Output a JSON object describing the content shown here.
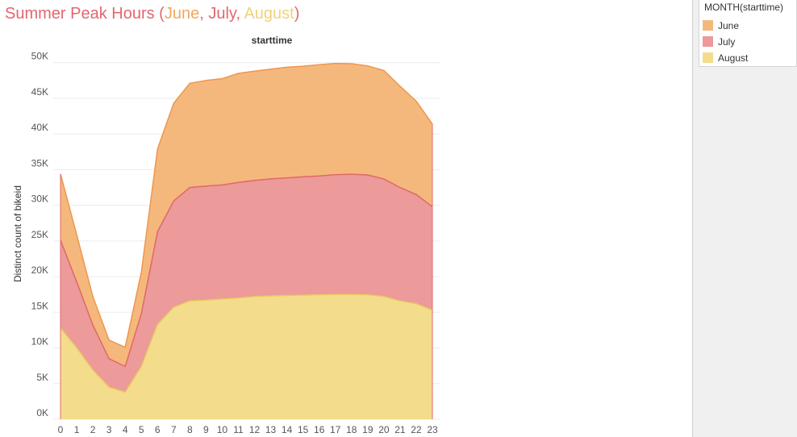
{
  "title": {
    "prefix": "Summer Peak Hours (",
    "june": "June",
    "sep1": ", ",
    "july": "July",
    "sep2": ", ",
    "august": "August",
    "suffix": ")"
  },
  "colors": {
    "title_main": "#e3666e",
    "title_june": "#f2a75c",
    "title_july": "#e3666e",
    "title_august": "#f0d27a",
    "june_fill": "#f5b87c",
    "june_stroke": "#ee9650",
    "july_fill": "#ec9a9a",
    "july_stroke": "#e0686a",
    "august_fill": "#f3dd8c",
    "august_stroke": "#e9c964",
    "gridline": "#ececec"
  },
  "legend": {
    "title": "MONTH(starttime)",
    "items": [
      {
        "label": "June",
        "color": "#f5b87c"
      },
      {
        "label": "July",
        "color": "#ec9a9a"
      },
      {
        "label": "August",
        "color": "#f3dd8c"
      }
    ]
  },
  "chart_data": {
    "type": "area",
    "stacked": true,
    "header": "starttime",
    "xlabel": "",
    "ylabel": "Distinct count of bikeid",
    "x": [
      0,
      1,
      2,
      3,
      4,
      5,
      6,
      7,
      8,
      9,
      10,
      11,
      12,
      13,
      14,
      15,
      16,
      17,
      18,
      19,
      20,
      21,
      22,
      23
    ],
    "ylim": [
      0,
      52000
    ],
    "yticks": [
      0,
      5000,
      10000,
      15000,
      20000,
      25000,
      30000,
      35000,
      40000,
      45000,
      50000
    ],
    "ytick_labels": [
      "0K",
      "5K",
      "10K",
      "15K",
      "20K",
      "25K",
      "30K",
      "35K",
      "40K",
      "45K",
      "50K"
    ],
    "grid": true,
    "legend_position": "top-right",
    "series": [
      {
        "name": "August",
        "values": [
          12800,
          10000,
          6900,
          4500,
          3800,
          7400,
          13300,
          15700,
          16600,
          16700,
          16850,
          17000,
          17200,
          17300,
          17350,
          17400,
          17450,
          17500,
          17500,
          17450,
          17200,
          16600,
          16200,
          15300
        ]
      },
      {
        "name": "July",
        "values": [
          12300,
          9300,
          6300,
          4000,
          3600,
          7400,
          13000,
          14900,
          15900,
          16000,
          16000,
          16200,
          16300,
          16400,
          16500,
          16600,
          16650,
          16800,
          16850,
          16800,
          16500,
          15900,
          15300,
          14500
        ]
      },
      {
        "name": "June",
        "values": [
          9300,
          6600,
          4000,
          2600,
          2700,
          5800,
          11600,
          13700,
          14600,
          14800,
          14900,
          15300,
          15300,
          15400,
          15500,
          15500,
          15600,
          15600,
          15500,
          15300,
          15200,
          14200,
          13100,
          11600
        ]
      }
    ]
  }
}
